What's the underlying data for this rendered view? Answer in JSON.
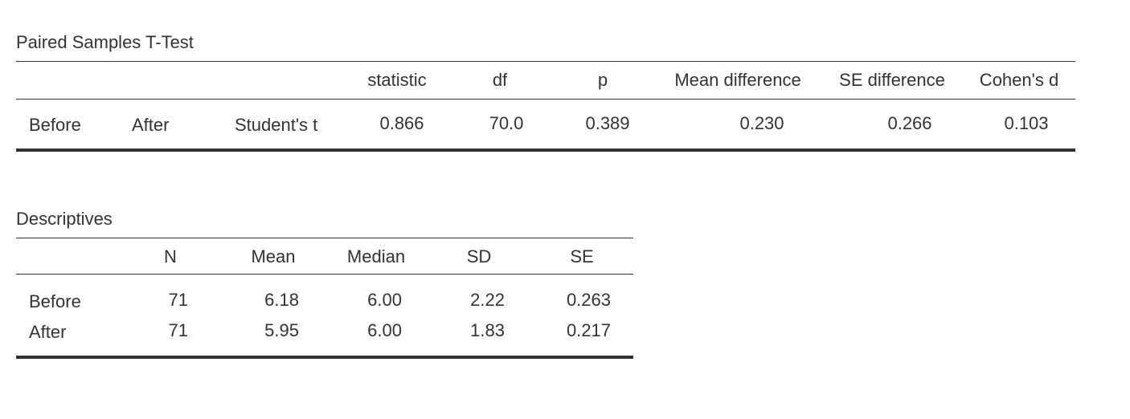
{
  "ttest": {
    "title": "Paired Samples T-Test",
    "headers": {
      "statistic": "statistic",
      "df": "df",
      "p": "p",
      "mean_diff": "Mean difference",
      "se_diff": "SE difference",
      "cohens_d": "Cohen's d"
    },
    "row": {
      "var1": "Before",
      "var2": "After",
      "test": "Student's t",
      "statistic": "0.866",
      "df": "70.0",
      "p": "0.389",
      "mean_diff": "0.230",
      "se_diff": "0.266",
      "cohens_d": "0.103"
    }
  },
  "descriptives": {
    "title": "Descriptives",
    "headers": {
      "n": "N",
      "mean": "Mean",
      "median": "Median",
      "sd": "SD",
      "se": "SE"
    },
    "rows": [
      {
        "label": "Before",
        "n": "71",
        "mean": "6.18",
        "median": "6.00",
        "sd": "2.22",
        "se": "0.263"
      },
      {
        "label": "After",
        "n": "71",
        "mean": "5.95",
        "median": "6.00",
        "sd": "1.83",
        "se": "0.217"
      }
    ]
  }
}
